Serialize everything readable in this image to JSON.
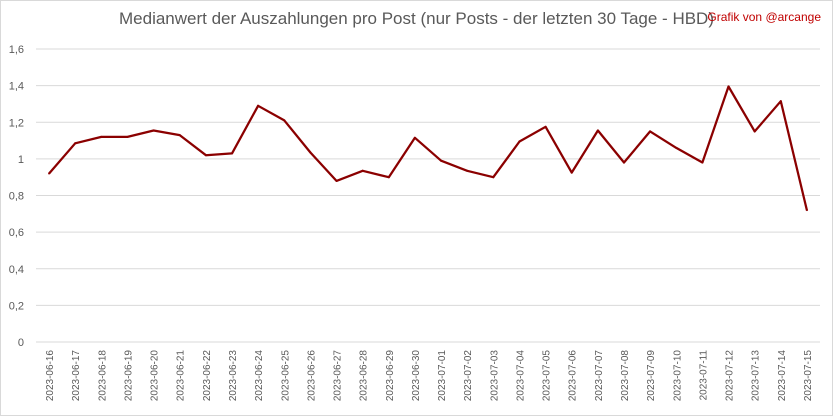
{
  "title": "Medianwert der Auszahlungen pro Post (nur Posts - der letzten 30 Tage - HBD)",
  "credit": "Grafik von @arcange",
  "colors": {
    "line": "#8b0000",
    "grid": "#d9d9d9",
    "text": "#595959",
    "credit": "#c00000"
  },
  "chart_data": {
    "type": "line",
    "title": "Medianwert der Auszahlungen pro Post (nur Posts - der letzten 30 Tage - HBD)",
    "xlabel": "",
    "ylabel": "",
    "ylim": [
      0,
      1.6
    ],
    "yticks": [
      "0",
      "0,2",
      "0,4",
      "0,6",
      "0,8",
      "1",
      "1,2",
      "1,4",
      "1,6"
    ],
    "grid": true,
    "legend": "none",
    "categories": [
      "2023-06-16",
      "2023-06-17",
      "2023-06-18",
      "2023-06-19",
      "2023-06-20",
      "2023-06-21",
      "2023-06-22",
      "2023-06-23",
      "2023-06-24",
      "2023-06-25",
      "2023-06-26",
      "2023-06-27",
      "2023-06-28",
      "2023-06-29",
      "2023-06-30",
      "2023-07-01",
      "2023-07-02",
      "2023-07-03",
      "2023-07-04",
      "2023-07-05",
      "2023-07-06",
      "2023-07-07",
      "2023-07-08",
      "2023-07-09",
      "2023-07-10",
      "2023-07-11",
      "2023-07-12",
      "2023-07-13",
      "2023-07-14",
      "2023-07-15"
    ],
    "values": [
      0.92,
      1.085,
      1.12,
      1.12,
      1.155,
      1.13,
      1.02,
      1.03,
      1.29,
      1.21,
      1.035,
      0.88,
      0.935,
      0.9,
      1.115,
      0.99,
      0.935,
      0.9,
      1.095,
      1.175,
      0.925,
      1.155,
      0.98,
      1.15,
      1.06,
      0.98,
      1.395,
      1.15,
      1.315,
      0.72
    ]
  }
}
